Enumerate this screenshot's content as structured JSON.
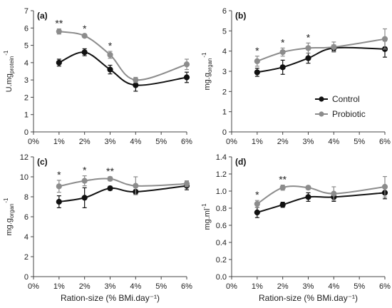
{
  "chart_data": [
    {
      "type": "line",
      "panel": "(a)",
      "categories": [
        "0%",
        "1%",
        "2%",
        "3%",
        "4%",
        "5%",
        "6%"
      ],
      "x": [
        1,
        2,
        3,
        4,
        6
      ],
      "ylim": [
        0,
        7
      ],
      "yticks": [
        "0",
        "1",
        "2",
        "3",
        "4",
        "5",
        "6",
        "7"
      ],
      "ylabel_main": "U.mg",
      "ylabel_sub": "protein",
      "ylabel_sup": "-1",
      "xlabel": "",
      "significance": [
        {
          "x": 1,
          "label": "**"
        },
        {
          "x": 2,
          "label": "*"
        },
        {
          "x": 3,
          "label": "*"
        }
      ],
      "series": [
        {
          "name": "Control",
          "color": "#111111",
          "values": [
            4.0,
            4.6,
            3.6,
            2.7,
            3.15
          ],
          "errors": [
            0.2,
            0.2,
            0.25,
            0.35,
            0.3
          ]
        },
        {
          "name": "Probiotic",
          "color": "#8c8c8c",
          "values": [
            5.8,
            5.55,
            4.45,
            3.0,
            3.9
          ],
          "errors": [
            0.15,
            0.1,
            0.2,
            0.15,
            0.3
          ]
        }
      ]
    },
    {
      "type": "line",
      "panel": "(b)",
      "categories": [
        "0%",
        "1%",
        "2%",
        "3%",
        "4%",
        "5%",
        "6%"
      ],
      "x": [
        1,
        2,
        3,
        4,
        6
      ],
      "ylim": [
        0,
        6
      ],
      "yticks": [
        "0",
        "1",
        "2",
        "3",
        "4",
        "5",
        "6"
      ],
      "ylabel_main": "mg.g",
      "ylabel_sub": "organ",
      "ylabel_sup": "-1",
      "xlabel": "",
      "significance": [
        {
          "x": 1,
          "label": "*"
        },
        {
          "x": 2,
          "label": "*"
        },
        {
          "x": 3,
          "label": "*"
        }
      ],
      "legend": {
        "position": "bottom-right",
        "entries": [
          "Control",
          "Probiotic"
        ]
      },
      "series": [
        {
          "name": "Control",
          "color": "#111111",
          "values": [
            2.95,
            3.2,
            3.65,
            4.15,
            4.1
          ],
          "errors": [
            0.2,
            0.35,
            0.25,
            0.15,
            0.4
          ]
        },
        {
          "name": "Probiotic",
          "color": "#8c8c8c",
          "values": [
            3.5,
            3.95,
            4.15,
            4.2,
            4.6
          ],
          "errors": [
            0.25,
            0.2,
            0.25,
            0.25,
            0.5
          ]
        }
      ]
    },
    {
      "type": "line",
      "panel": "(c)",
      "categories": [
        "0%",
        "1%",
        "2%",
        "3%",
        "4%",
        "5%",
        "6%"
      ],
      "x": [
        1,
        2,
        3,
        4,
        6
      ],
      "ylim": [
        0,
        12
      ],
      "yticks": [
        "0",
        "2",
        "4",
        "6",
        "8",
        "10",
        "12"
      ],
      "ylabel_main": "mg.g",
      "ylabel_sub": "organ",
      "ylabel_sup": "-1",
      "xlabel": "Ration-size (% BMi.day⁻¹)",
      "significance": [
        {
          "x": 1,
          "label": "*"
        },
        {
          "x": 2,
          "label": "*"
        },
        {
          "x": 3,
          "label": "**"
        }
      ],
      "series": [
        {
          "name": "Control",
          "color": "#111111",
          "values": [
            7.5,
            7.9,
            8.85,
            8.5,
            9.1
          ],
          "errors": [
            0.6,
            1.0,
            0.2,
            0.2,
            0.4
          ]
        },
        {
          "name": "Probiotic",
          "color": "#8c8c8c",
          "values": [
            9.05,
            9.6,
            9.8,
            9.1,
            9.3
          ],
          "errors": [
            0.6,
            0.5,
            0.2,
            0.9,
            0.3
          ]
        }
      ]
    },
    {
      "type": "line",
      "panel": "(d)",
      "categories": [
        "0%",
        "1%",
        "2%",
        "3%",
        "4%",
        "5%",
        "6%"
      ],
      "x": [
        1,
        2,
        3,
        4,
        6
      ],
      "ylim": [
        0,
        1.4
      ],
      "yticks": [
        "0.0",
        "0.2",
        "0.4",
        "0.6",
        "0.8",
        "1.0",
        "1.2",
        "1.4"
      ],
      "ylabel_main": "mg.ml",
      "ylabel_sub": "",
      "ylabel_sup": "-1",
      "xlabel": "Ration-size (% BMi.day⁻¹)",
      "significance": [
        {
          "x": 1,
          "label": "*"
        },
        {
          "x": 2,
          "label": "**"
        }
      ],
      "series": [
        {
          "name": "Control",
          "color": "#111111",
          "values": [
            0.75,
            0.84,
            0.93,
            0.93,
            0.98
          ],
          "errors": [
            0.06,
            0.03,
            0.05,
            0.05,
            0.07
          ]
        },
        {
          "name": "Probiotic",
          "color": "#8c8c8c",
          "values": [
            0.85,
            1.04,
            1.04,
            0.97,
            1.05
          ],
          "errors": [
            0.04,
            0.03,
            0.02,
            0.08,
            0.12
          ]
        }
      ]
    }
  ]
}
